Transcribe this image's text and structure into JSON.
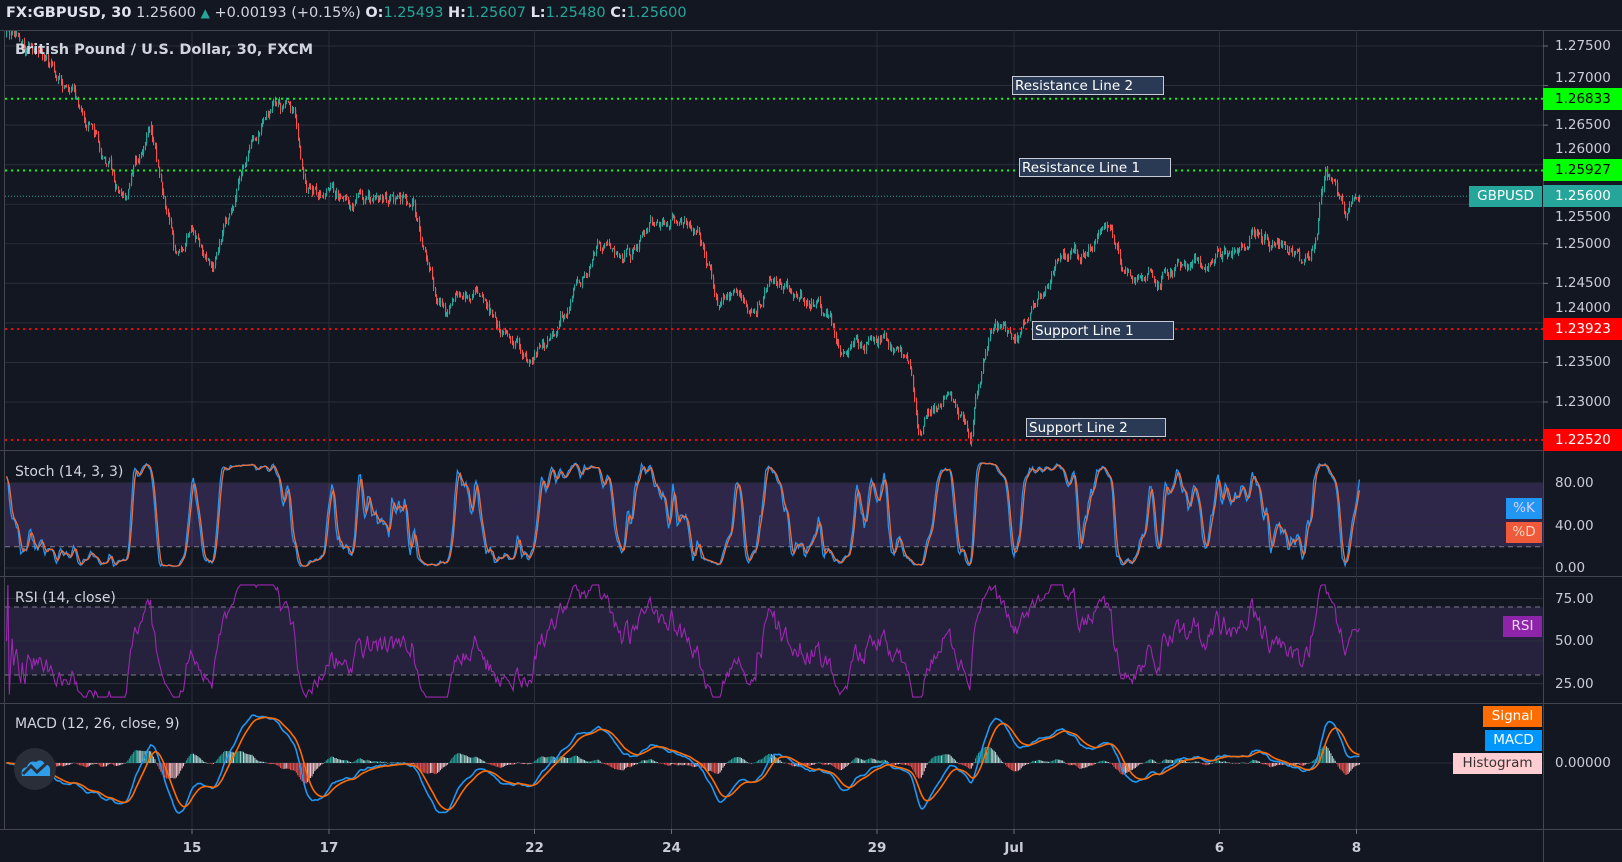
{
  "header": {
    "symbol": "FX:GBPUSD, 30",
    "last": "1.25600",
    "change_icon": "triangle-up-icon",
    "change": "+0.00193 (+0.15%)",
    "o_label": "O:",
    "o": "1.25493",
    "h_label": "H:",
    "h": "1.25607",
    "l_label": "L:",
    "l": "1.25480",
    "c_label": "C:",
    "c": "1.25600"
  },
  "main": {
    "title": "British Pound / U.S. Dollar, 30, FXCM"
  },
  "logo": "tradingview-cloud-icon",
  "colors": {
    "background": "#131722",
    "grid": "#2a2e39",
    "up": "#26a69a",
    "down": "#ef5350",
    "resistance": "#00ff00",
    "support": "#ff0000",
    "last_price": "#26a69a",
    "stoch_k": "#2196f3",
    "stoch_d": "#ef6c3a",
    "rsi": "#9c27b0",
    "macd": "#2196f3",
    "signal": "#ff6d00",
    "histogram_label": "#ffcdd2"
  },
  "chart_data": {
    "type": "candlestick",
    "interval": "30",
    "price_path": [
      {
        "t": "06-10 07:00",
        "p": 1.2763
      },
      {
        "t": "06-10 20:00",
        "p": 1.2737
      },
      {
        "t": "06-11 06:30",
        "p": 1.2685
      },
      {
        "t": "06-11 17:00",
        "p": 1.2613
      },
      {
        "t": "06-12 00:30",
        "p": 1.2554
      },
      {
        "t": "06-12 09:30",
        "p": 1.2646
      },
      {
        "t": "06-12 18:00",
        "p": 1.2482
      },
      {
        "t": "06-15 00:00",
        "p": 1.2521
      },
      {
        "t": "06-15 07:00",
        "p": 1.2462
      },
      {
        "t": "06-15 20:00",
        "p": 1.2613
      },
      {
        "t": "06-16 05:00",
        "p": 1.2678
      },
      {
        "t": "06-16 12:00",
        "p": 1.2665
      },
      {
        "t": "06-16 15:30",
        "p": 1.2567
      },
      {
        "t": "06-17 11:30",
        "p": 1.2554
      },
      {
        "t": "06-18 05:30",
        "p": 1.2554
      },
      {
        "t": "06-18 13:00",
        "p": 1.2443
      },
      {
        "t": "06-18 16:30",
        "p": 1.2417
      },
      {
        "t": "06-19 05:00",
        "p": 1.2449
      },
      {
        "t": "06-19 12:00",
        "p": 1.239
      },
      {
        "t": "06-19 23:00",
        "p": 1.2345
      },
      {
        "t": "06-22 08:00",
        "p": 1.2403
      },
      {
        "t": "06-22 22:30",
        "p": 1.2495
      },
      {
        "t": "06-23 09:30",
        "p": 1.2482
      },
      {
        "t": "06-23 16:30",
        "p": 1.2528
      },
      {
        "t": "06-24 00:00",
        "p": 1.2535
      },
      {
        "t": "06-24 09:00",
        "p": 1.2516
      },
      {
        "t": "06-24 16:00",
        "p": 1.243
      },
      {
        "t": "06-25 04:30",
        "p": 1.2424
      },
      {
        "t": "06-25 10:00",
        "p": 1.245
      },
      {
        "t": "06-26 02:30",
        "p": 1.243
      },
      {
        "t": "06-26 13:00",
        "p": 1.2365
      },
      {
        "t": "06-29 03:30",
        "p": 1.2385
      },
      {
        "t": "06-29 11:00",
        "p": 1.2333
      },
      {
        "t": "06-29 14:30",
        "p": 1.2261
      },
      {
        "t": "06-29 23:30",
        "p": 1.2314
      },
      {
        "t": "06-30 08:30",
        "p": 1.2261
      },
      {
        "t": "06-30 15:30",
        "p": 1.239
      },
      {
        "t": "07-01 02:30",
        "p": 1.239
      },
      {
        "t": "07-01 13:30",
        "p": 1.2475
      },
      {
        "t": "07-01 22:30",
        "p": 1.2488
      },
      {
        "t": "07-02 09:00",
        "p": 1.2528
      },
      {
        "t": "07-02 14:30",
        "p": 1.2462
      },
      {
        "t": "07-03 08:30",
        "p": 1.2462
      },
      {
        "t": "07-03 23:00",
        "p": 1.2488
      },
      {
        "t": "07-06 11:30",
        "p": 1.2508
      },
      {
        "t": "07-07 00:30",
        "p": 1.2495
      },
      {
        "t": "07-07 07:30",
        "p": 1.2469
      },
      {
        "t": "07-07 13:00",
        "p": 1.2587
      },
      {
        "t": "07-07 20:00",
        "p": 1.2541
      },
      {
        "t": "07-08 01:00",
        "p": 1.256
      }
    ],
    "ylim": [
      1.2244,
      1.278
    ],
    "price_ticks": [
      1.275,
      1.27,
      1.265,
      1.26,
      1.255,
      1.25,
      1.245,
      1.24,
      1.235,
      1.23
    ],
    "time_ticks": [
      {
        "t": "06-15 00:00",
        "label": "15"
      },
      {
        "t": "06-17 00:00",
        "label": "17"
      },
      {
        "t": "06-22 00:00",
        "label": "22"
      },
      {
        "t": "06-24 00:00",
        "label": "24"
      },
      {
        "t": "06-29 00:00",
        "label": "29"
      },
      {
        "t": "07-01 00:00",
        "label": "Jul"
      },
      {
        "t": "07-06 00:00",
        "label": "6"
      },
      {
        "t": "07-08 00:00",
        "label": "8"
      }
    ],
    "levels": [
      {
        "name": "Resistance Line 2",
        "value": 1.26833,
        "kind": "resistance"
      },
      {
        "name": "Resistance Line 1",
        "value": 1.25927,
        "kind": "resistance"
      },
      {
        "name": "Support Line 1",
        "value": 1.23923,
        "kind": "support"
      },
      {
        "name": "Support Line 2",
        "value": 1.2252,
        "kind": "support"
      }
    ],
    "last_price": {
      "label": "GBPUSD",
      "value": 1.256
    },
    "indicators": {
      "stoch": {
        "title": "Stoch (14, 3, 3)",
        "ticks": [
          "80.00",
          "40.00",
          "0.00"
        ],
        "tick_values": [
          80,
          40,
          0
        ],
        "bands": [
          80,
          20
        ],
        "ylim": [
          0,
          100
        ],
        "k_label": "%K",
        "d_label": "%D"
      },
      "rsi": {
        "title": "RSI (14, close)",
        "ticks": [
          "75.00",
          "50.00",
          "25.00"
        ],
        "tick_values": [
          75,
          50,
          25
        ],
        "bands": [
          70,
          30
        ],
        "ylim": [
          15,
          85
        ],
        "label": "RSI"
      },
      "macd": {
        "title": "MACD (12, 26, close, 9)",
        "ticks": [
          "0.00000"
        ],
        "signal_label": "Signal",
        "macd_label": "MACD",
        "hist_label": "Histogram"
      }
    }
  }
}
